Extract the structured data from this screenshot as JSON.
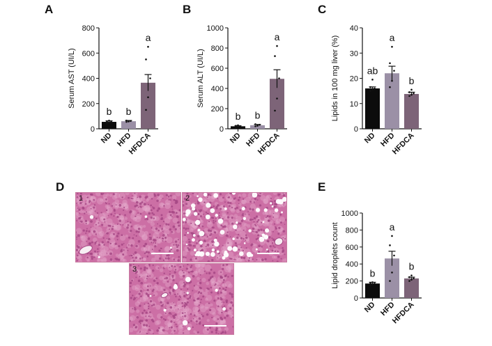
{
  "panels": {
    "a": "A",
    "b": "B",
    "c": "C",
    "d": "D",
    "e": "E"
  },
  "colors": {
    "ND": "#0c0c0c",
    "HFD": "#9b90a6",
    "HFDCA": "#7d6478",
    "tissue": "#cc6fa5",
    "tissue_dark": "#a64885",
    "tissue_light": "#e8b2d2"
  },
  "micrographs": [
    {
      "label": "1"
    },
    {
      "label": "2"
    },
    {
      "label": "3"
    }
  ],
  "chart_data": [
    {
      "id": "A",
      "type": "bar",
      "categories": [
        "ND",
        "HFD",
        "HFDCA"
      ],
      "values": [
        55,
        60,
        365
      ],
      "errors": [
        8,
        6,
        65
      ],
      "points": [
        [
          45,
          50,
          55,
          60,
          65
        ],
        [
          55,
          58,
          62,
          65,
          60
        ],
        [
          150,
          250,
          400,
          550,
          650
        ]
      ],
      "letters": [
        "b",
        "b",
        "a"
      ],
      "ylabel": "Serum AST (UI/L)",
      "ylim": [
        0,
        800
      ],
      "yticks": [
        0,
        200,
        400,
        600,
        800
      ],
      "grid": false
    },
    {
      "id": "B",
      "type": "bar",
      "categories": [
        "ND",
        "HFD",
        "HFDCA"
      ],
      "values": [
        25,
        35,
        495
      ],
      "errors": [
        5,
        8,
        90
      ],
      "points": [
        [
          15,
          20,
          25,
          30,
          35
        ],
        [
          25,
          30,
          40,
          45,
          35
        ],
        [
          180,
          300,
          500,
          720,
          820
        ]
      ],
      "letters": [
        "b",
        "b",
        "a"
      ],
      "ylabel": "Serum ALT (UI/L)",
      "ylim": [
        0,
        1000
      ],
      "yticks": [
        0,
        200,
        400,
        600,
        800,
        1000
      ],
      "grid": false
    },
    {
      "id": "C",
      "type": "bar",
      "categories": [
        "ND",
        "HFD",
        "HFDCA"
      ],
      "values": [
        16,
        22,
        13.8
      ],
      "errors": [
        0.6,
        2.8,
        0.7
      ],
      "points": [
        [
          15,
          15.5,
          16,
          16.5,
          19.5
        ],
        [
          16.5,
          19,
          23,
          26,
          32.5
        ],
        [
          13,
          13.5,
          14,
          14.5,
          15.5
        ]
      ],
      "letters": [
        "ab",
        "a",
        "b"
      ],
      "ylabel": "Lipids in 100 mg liver (%)",
      "ylim": [
        0,
        40
      ],
      "yticks": [
        0,
        10,
        20,
        30,
        40
      ],
      "grid": false
    },
    {
      "id": "E",
      "type": "bar",
      "categories": [
        "ND",
        "HFD",
        "HFDCA"
      ],
      "values": [
        170,
        465,
        230
      ],
      "errors": [
        15,
        85,
        15
      ],
      "points": [
        [
          150,
          160,
          170,
          175,
          185
        ],
        [
          200,
          300,
          500,
          620,
          730
        ],
        [
          200,
          215,
          230,
          245,
          265
        ]
      ],
      "letters": [
        "b",
        "a",
        "b"
      ],
      "ylabel": "Lipid droplets count",
      "ylim": [
        0,
        1000
      ],
      "yticks": [
        0,
        200,
        400,
        600,
        800,
        1000
      ],
      "grid": false
    }
  ]
}
